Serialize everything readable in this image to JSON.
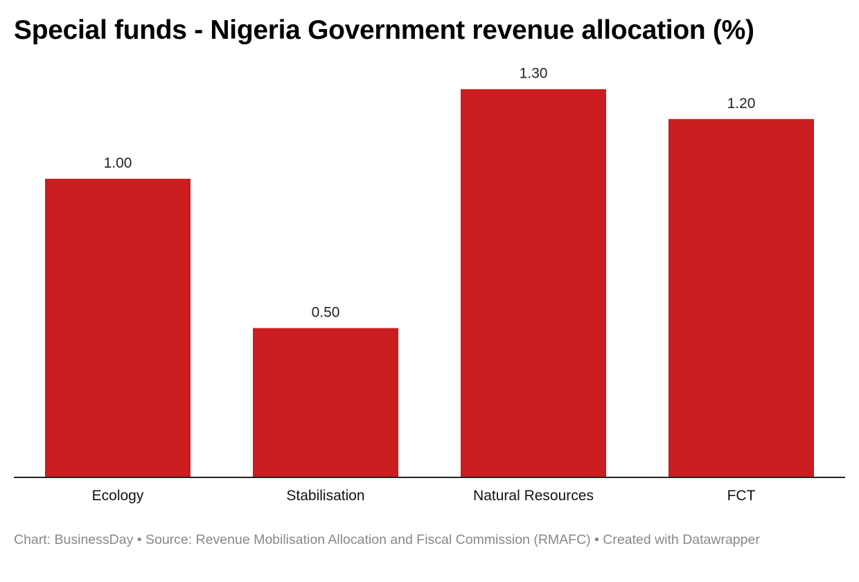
{
  "chart_data": {
    "type": "bar",
    "title": "Special funds - Nigeria Government revenue allocation (%)",
    "categories": [
      "Ecology",
      "Stabilisation",
      "Natural Resources",
      "FCT"
    ],
    "values": [
      1.0,
      0.5,
      1.3,
      1.2
    ],
    "data_labels": [
      "1.00",
      "0.50",
      "1.30",
      "1.20"
    ],
    "xlabel": "",
    "ylabel": "",
    "ylim": [
      0,
      1.3
    ],
    "grid": false,
    "bar_color": "#c91d1f"
  },
  "footer": {
    "text": "Chart: BusinessDay • Source: Revenue Mobilisation Allocation and Fiscal Commission (RMAFC) • Created with Datawrapper"
  }
}
